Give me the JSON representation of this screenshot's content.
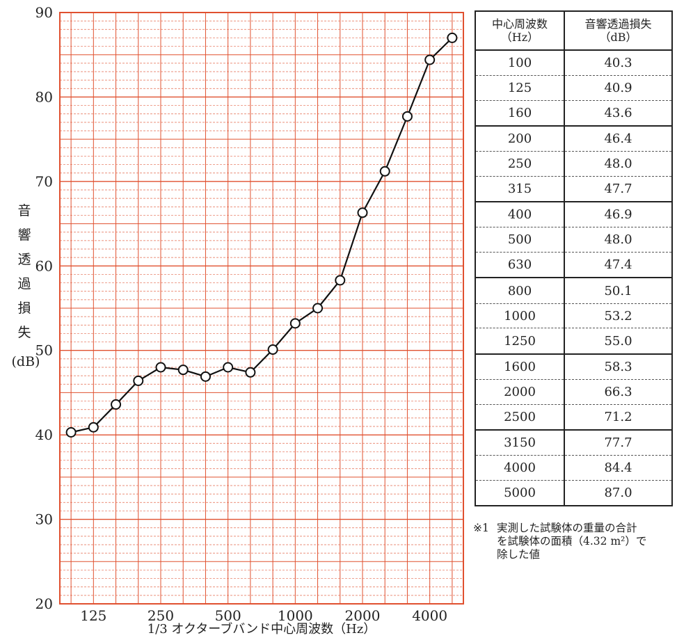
{
  "chart_data": {
    "type": "line",
    "x": [
      "100",
      "125",
      "160",
      "200",
      "250",
      "315",
      "400",
      "500",
      "630",
      "800",
      "1000",
      "1250",
      "1600",
      "2000",
      "2500",
      "3150",
      "4000",
      "5000"
    ],
    "values": [
      40.3,
      40.9,
      43.6,
      46.4,
      48.0,
      47.7,
      46.9,
      48.0,
      47.4,
      50.1,
      53.2,
      55.0,
      58.3,
      66.3,
      71.2,
      77.7,
      84.4,
      87.0
    ],
    "xtick_labels": [
      "125",
      "250",
      "500",
      "1000",
      "2000",
      "4000"
    ],
    "ylim": [
      20,
      90
    ],
    "yticks": [
      20,
      30,
      40,
      50,
      60,
      70,
      80,
      90
    ],
    "xlabel": "1/3 オクターブバンド中心周波数（Hz）",
    "ylabel_chars": [
      "音",
      "響",
      "透",
      "過",
      "損",
      "失"
    ],
    "ylabel_unit": "(dB)",
    "grid": true,
    "grid_color": "#e0502f",
    "line_color": "#111111",
    "marker": "open-circle"
  },
  "table": {
    "header_freq_line1": "中心周波数",
    "header_freq_line2": "（Hz）",
    "header_loss_line1": "音響透過損失",
    "header_loss_line2": "（dB）",
    "rows": [
      {
        "freq": "100",
        "loss": "40.3"
      },
      {
        "freq": "125",
        "loss": "40.9"
      },
      {
        "freq": "160",
        "loss": "43.6"
      },
      {
        "freq": "200",
        "loss": "46.4"
      },
      {
        "freq": "250",
        "loss": "48.0"
      },
      {
        "freq": "315",
        "loss": "47.7"
      },
      {
        "freq": "400",
        "loss": "46.9"
      },
      {
        "freq": "500",
        "loss": "48.0"
      },
      {
        "freq": "630",
        "loss": "47.4"
      },
      {
        "freq": "800",
        "loss": "50.1"
      },
      {
        "freq": "1000",
        "loss": "53.2"
      },
      {
        "freq": "1250",
        "loss": "55.0"
      },
      {
        "freq": "1600",
        "loss": "58.3"
      },
      {
        "freq": "2000",
        "loss": "66.3"
      },
      {
        "freq": "2500",
        "loss": "71.2"
      },
      {
        "freq": "3150",
        "loss": "77.7"
      },
      {
        "freq": "4000",
        "loss": "84.4"
      },
      {
        "freq": "5000",
        "loss": "87.0"
      }
    ]
  },
  "note": {
    "mark": "※1",
    "line1": "実測した試験体の重量の合計",
    "line2": "を試験体の面積（4.32 m²）で",
    "line3": "除した値"
  }
}
